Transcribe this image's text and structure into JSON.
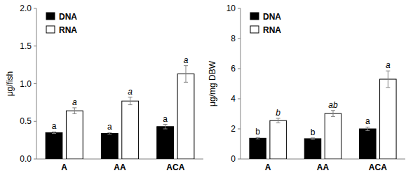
{
  "chart_data": [
    {
      "type": "bar",
      "y_label": "μg/fish",
      "categories": [
        "A",
        "AA",
        "ACA"
      ],
      "series": [
        {
          "name": "DNA",
          "color": "#000000",
          "values": [
            0.35,
            0.34,
            0.43
          ],
          "errors": [
            0.01,
            0.01,
            0.03
          ],
          "letters": [
            "a",
            "a",
            "a"
          ]
        },
        {
          "name": "RNA",
          "color": "#ffffff",
          "values": [
            0.64,
            0.77,
            1.13
          ],
          "errors": [
            0.04,
            0.05,
            0.11
          ],
          "letters": [
            "a",
            "a",
            "a"
          ]
        }
      ],
      "ylim": [
        0,
        2
      ],
      "yticks": [
        {
          "value": 0,
          "label": "0.0"
        },
        {
          "value": 0.5,
          "label": "0.5"
        },
        {
          "value": 1,
          "label": "1.0"
        },
        {
          "value": 1.5,
          "label": "1.5"
        },
        {
          "value": 2,
          "label": "2.0"
        }
      ],
      "legend": "upper left",
      "grid": false
    },
    {
      "type": "bar",
      "y_label": "μg/mg DBW",
      "categories": [
        "A",
        "AA",
        "ACA"
      ],
      "series": [
        {
          "name": "DNA",
          "color": "#000000",
          "values": [
            1.38,
            1.35,
            2.0
          ],
          "errors": [
            0.05,
            0.05,
            0.12
          ],
          "letters": [
            "b",
            "b",
            "a"
          ]
        },
        {
          "name": "RNA",
          "color": "#ffffff",
          "values": [
            2.55,
            3.02,
            5.3
          ],
          "errors": [
            0.15,
            0.2,
            0.55
          ],
          "letters": [
            "b",
            "ab",
            "a"
          ]
        }
      ],
      "ylim": [
        0,
        10
      ],
      "yticks": [
        0,
        2,
        4,
        6,
        8,
        10
      ],
      "legend": "upper left",
      "grid": false
    }
  ]
}
